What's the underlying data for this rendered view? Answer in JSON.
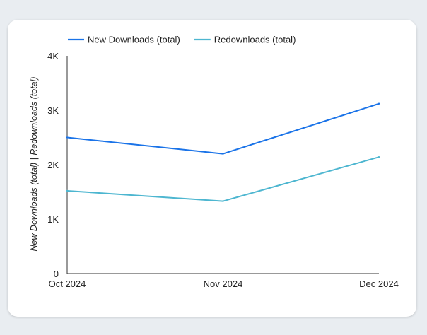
{
  "chart_data": {
    "type": "line",
    "categories": [
      "Oct 2024",
      "Nov 2024",
      "Dec 2024"
    ],
    "series": [
      {
        "name": "New Downloads (total)",
        "values": [
          2500,
          2200,
          3120
        ],
        "color": "#1a73e8"
      },
      {
        "name": "Redownloads (total)",
        "values": [
          1520,
          1330,
          2140
        ],
        "color": "#4db6d0"
      }
    ],
    "ylabel": "New Downloads (total) | Redownloads (total)",
    "ylim": [
      0,
      4000
    ],
    "yticks": [
      0,
      1000,
      2000,
      3000,
      4000
    ],
    "ytick_labels": [
      "0",
      "1K",
      "2K",
      "3K",
      "4K"
    ],
    "legend_position": "top-left",
    "grid": false
  }
}
